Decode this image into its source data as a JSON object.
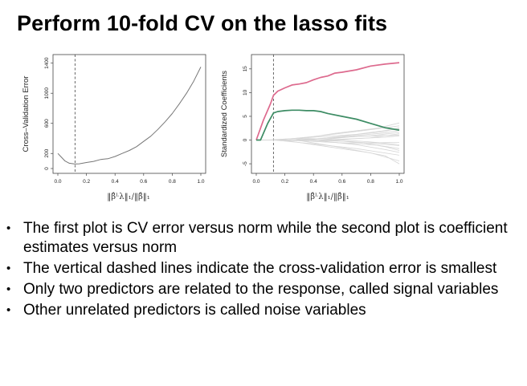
{
  "slide": {
    "title": "Perform 10-fold CV on the lasso fits",
    "bullets": [
      "The first plot is CV error versus norm while the second plot is coefficient estimates versus norm",
      "The vertical dashed lines indicate the cross-validation error is smallest",
      "Only two predictors are related to the response, called signal variables",
      "Other unrelated predictors is called noise variables"
    ]
  },
  "colors": {
    "cv_curve": "#777777",
    "signal_1": "#dd6a8e",
    "signal_2": "#3d8c64",
    "noise": "#d6d6d6",
    "dashed_line": "#444444"
  },
  "chart_data": [
    {
      "type": "line",
      "ylabel": "Cross–Validation Error",
      "xlabel": "‖β̂ᴸλ‖₁/‖β̂‖₁",
      "xlim": [
        0,
        1
      ],
      "ylim": [
        0,
        1450
      ],
      "x_ticks": [
        "0.0",
        "0.2",
        "0.4",
        "0.6",
        "0.8",
        "1.0"
      ],
      "y_ticks": [
        "0",
        "200",
        "600",
        "1000",
        "1400"
      ],
      "min_cv_x": 0.12,
      "series": [
        {
          "x": [
            0.0,
            0.02,
            0.05,
            0.08,
            0.12,
            0.15,
            0.2,
            0.25,
            0.3,
            0.35,
            0.4,
            0.45,
            0.5,
            0.55,
            0.6,
            0.65,
            0.7,
            0.75,
            0.8,
            0.85,
            0.9,
            0.95,
            1.0
          ],
          "y": [
            200,
            160,
            100,
            70,
            60,
            63,
            80,
            95,
            120,
            130,
            160,
            200,
            240,
            290,
            360,
            430,
            520,
            620,
            730,
            860,
            1000,
            1160,
            1350
          ]
        }
      ]
    },
    {
      "type": "line",
      "ylabel": "Standardized Coefficients",
      "xlabel": "‖β̂ᴸλ‖₁/‖β̂‖₁",
      "xlim": [
        0,
        1
      ],
      "ylim": [
        -6,
        17
      ],
      "x_ticks": [
        "0.0",
        "0.2",
        "0.4",
        "0.6",
        "0.8",
        "1.0"
      ],
      "y_ticks": [
        "-5",
        "0",
        "5",
        "10",
        "15"
      ],
      "min_cv_x": 0.12,
      "series": [
        {
          "role": "signal",
          "x": [
            0.0,
            0.05,
            0.1,
            0.12,
            0.15,
            0.2,
            0.25,
            0.3,
            0.35,
            0.4,
            0.45,
            0.5,
            0.55,
            0.6,
            0.7,
            0.8,
            0.9,
            1.0
          ],
          "y": [
            0,
            4.2,
            7.7,
            9.4,
            10.3,
            11.0,
            11.6,
            11.8,
            12.1,
            12.7,
            13.2,
            13.5,
            14.1,
            14.3,
            14.8,
            15.6,
            16.0,
            16.3
          ]
        },
        {
          "role": "signal",
          "x": [
            0.0,
            0.03,
            0.08,
            0.12,
            0.15,
            0.2,
            0.25,
            0.3,
            0.35,
            0.4,
            0.45,
            0.5,
            0.6,
            0.7,
            0.8,
            0.9,
            1.0
          ],
          "y": [
            0,
            0,
            3.5,
            5.7,
            6.0,
            6.2,
            6.3,
            6.3,
            6.2,
            6.2,
            6.0,
            5.6,
            5.0,
            4.4,
            3.5,
            2.6,
            2.1
          ]
        },
        {
          "role": "noise",
          "x": [
            0.1,
            0.4,
            0.7,
            1.0
          ],
          "y": [
            0,
            0.6,
            1.2,
            2.4
          ]
        },
        {
          "role": "noise",
          "x": [
            0.12,
            0.4,
            0.7,
            1.0
          ],
          "y": [
            0,
            -0.8,
            -1.8,
            -3.2
          ]
        },
        {
          "role": "noise",
          "x": [
            0.15,
            0.45,
            0.75,
            1.0
          ],
          "y": [
            0,
            0.9,
            2.0,
            3.0
          ]
        },
        {
          "role": "noise",
          "x": [
            0.18,
            0.5,
            0.8,
            1.0
          ],
          "y": [
            0,
            -1.4,
            -2.7,
            -4.4
          ]
        },
        {
          "role": "noise",
          "x": [
            0.2,
            0.5,
            0.8,
            1.0
          ],
          "y": [
            0,
            0.4,
            0.9,
            1.6
          ]
        },
        {
          "role": "noise",
          "x": [
            0.22,
            0.55,
            0.85,
            1.0
          ],
          "y": [
            0,
            -0.5,
            -1.1,
            -1.8
          ]
        },
        {
          "role": "noise",
          "x": [
            0.25,
            0.55,
            0.85,
            1.0
          ],
          "y": [
            0,
            1.4,
            2.5,
            3.6
          ]
        },
        {
          "role": "noise",
          "x": [
            0.28,
            0.6,
            0.9,
            1.0
          ],
          "y": [
            0,
            -1.6,
            -3.3,
            -5.0
          ]
        },
        {
          "role": "noise",
          "x": [
            0.3,
            0.6,
            0.9,
            1.0
          ],
          "y": [
            0,
            0.7,
            1.5,
            2.0
          ]
        },
        {
          "role": "noise",
          "x": [
            0.33,
            0.65,
            0.9,
            1.0
          ],
          "y": [
            0,
            -0.3,
            -0.9,
            -1.2
          ]
        },
        {
          "role": "noise",
          "x": [
            0.36,
            0.65,
            0.9,
            1.0
          ],
          "y": [
            0,
            1.0,
            1.8,
            2.6
          ]
        },
        {
          "role": "noise",
          "x": [
            0.4,
            0.7,
            0.9,
            1.0
          ],
          "y": [
            0,
            -1.0,
            -2.0,
            -2.6
          ]
        },
        {
          "role": "noise",
          "x": [
            0.45,
            0.7,
            0.9,
            1.0
          ],
          "y": [
            0,
            0.3,
            0.6,
            0.9
          ]
        },
        {
          "role": "noise",
          "x": [
            0.5,
            0.75,
            0.9,
            1.0
          ],
          "y": [
            0,
            -0.6,
            -1.4,
            -2.2
          ]
        },
        {
          "role": "noise",
          "x": [
            0.55,
            0.8,
            0.95,
            1.0
          ],
          "y": [
            0,
            0.5,
            1.1,
            1.3
          ]
        },
        {
          "role": "noise",
          "x": [
            0.6,
            0.8,
            0.95,
            1.0
          ],
          "y": [
            0,
            -0.4,
            -0.8,
            -1.0
          ]
        },
        {
          "role": "noise",
          "x": [
            0.08,
            0.3,
            0.5,
            0.7,
            1.0
          ],
          "y": [
            0,
            0.4,
            0.2,
            0.8,
            1.0
          ]
        },
        {
          "role": "noise",
          "x": [
            0.14,
            0.35,
            0.6,
            1.0
          ],
          "y": [
            0,
            -0.2,
            -0.6,
            -0.5
          ]
        }
      ]
    }
  ]
}
